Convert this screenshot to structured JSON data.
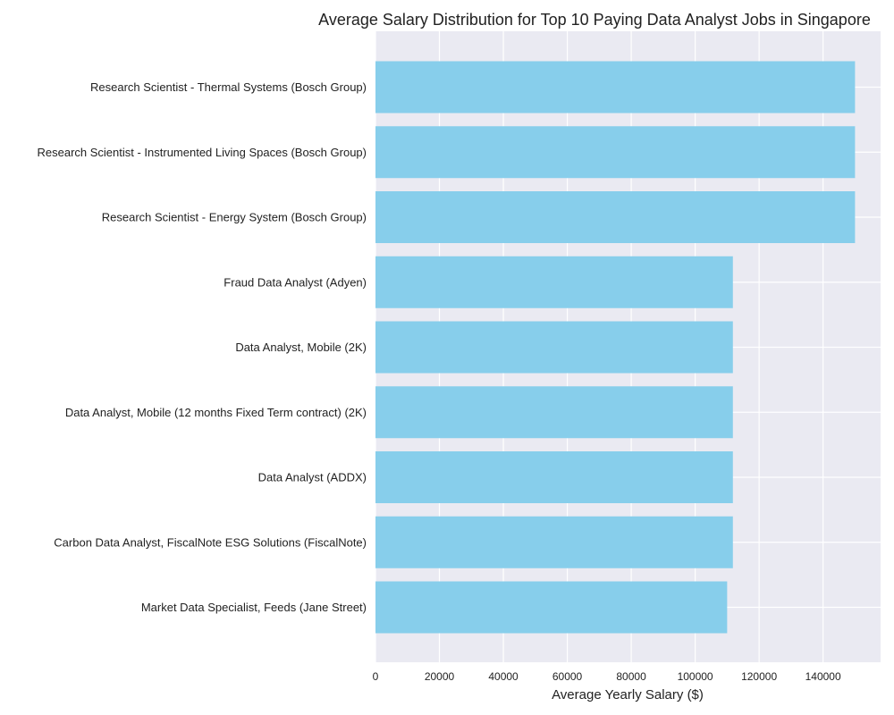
{
  "chart_data": {
    "type": "bar",
    "orientation": "horizontal",
    "title": "Average Salary Distribution for Top 10 Paying Data Analyst Jobs in Singapore",
    "xlabel": "Average Yearly Salary ($)",
    "ylabel": "",
    "xlim": [
      0,
      158000
    ],
    "xticks": [
      0,
      20000,
      40000,
      60000,
      80000,
      100000,
      120000,
      140000
    ],
    "grid": true,
    "bar_color": "#87ceeb",
    "background_color": "#eaeaf2",
    "categories": [
      "Research Scientist - Thermal Systems (Bosch Group)",
      "Research Scientist - Instrumented Living Spaces (Bosch Group)",
      "Research Scientist - Energy System (Bosch Group)",
      "Fraud Data Analyst (Adyen)",
      "Data Analyst, Mobile (2K)",
      "Data Analyst, Mobile (12 months Fixed Term contract) (2K)",
      "Data Analyst (ADDX)",
      "Carbon Data Analyst, FiscalNote ESG Solutions (FiscalNote)",
      "Market Data Specialist, Feeds (Jane Street)"
    ],
    "values": [
      150000,
      150000,
      150000,
      111800,
      111800,
      111800,
      111800,
      111800,
      110000
    ]
  }
}
